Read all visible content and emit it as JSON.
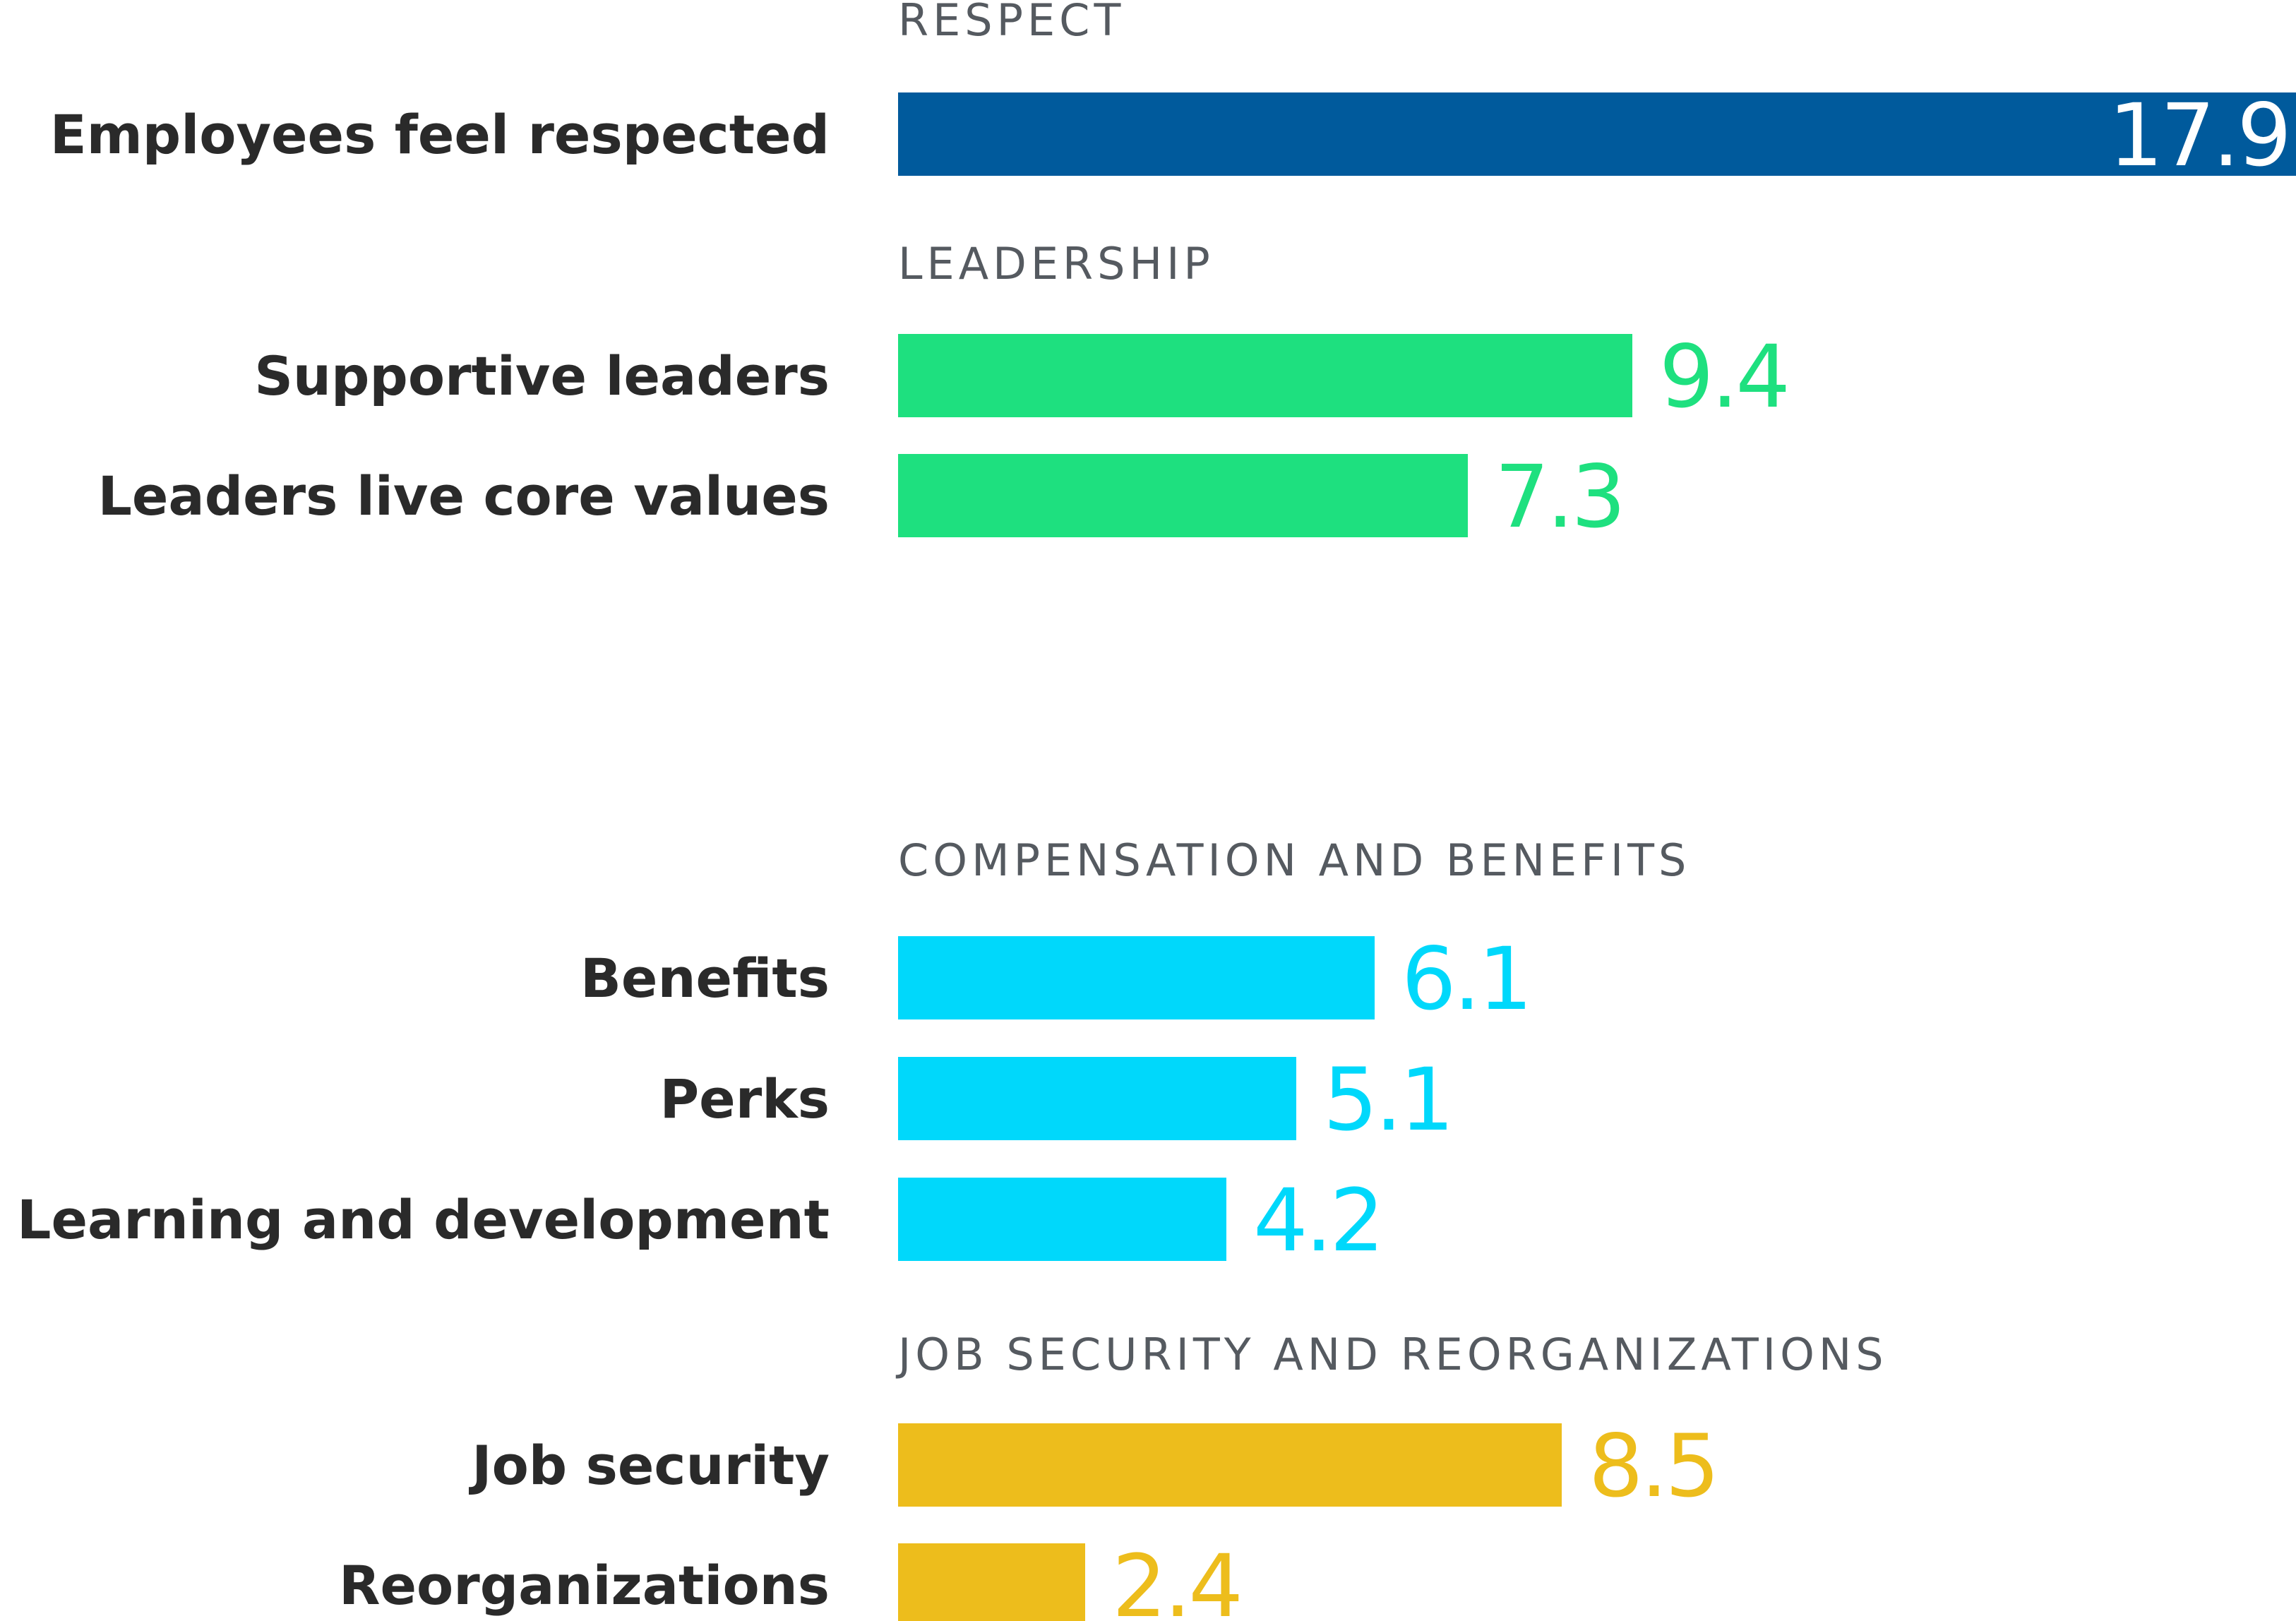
{
  "chart_data": {
    "type": "bar",
    "orientation": "horizontal",
    "groups": [
      {
        "name": "RESPECT",
        "color": "#005a9c",
        "items": [
          {
            "label": "Employees feel respected",
            "value": 17.9
          }
        ]
      },
      {
        "name": "LEADERSHIP",
        "color": "#1ee07f",
        "items": [
          {
            "label": "Supportive leaders",
            "value": 9.4
          },
          {
            "label": "Leaders live core values",
            "value": 7.3
          }
        ]
      },
      {
        "name": "COMPENSATION AND BENEFITS",
        "color": "#00d8fb",
        "items": [
          {
            "label": "Benefits",
            "value": 6.1
          },
          {
            "label": "Perks",
            "value": 5.1
          },
          {
            "label": "Learning and development",
            "value": 4.2
          }
        ]
      },
      {
        "name": "JOB SECURITY AND REORGANIZATIONS",
        "color": "#edbd1c",
        "items": [
          {
            "label": "Job security",
            "value": 8.5
          },
          {
            "label": "Reorganizations",
            "value": 2.4
          }
        ]
      }
    ],
    "xlim": [
      0,
      17.9
    ],
    "value_labels": "end-of-bar; inside for the largest bar"
  }
}
